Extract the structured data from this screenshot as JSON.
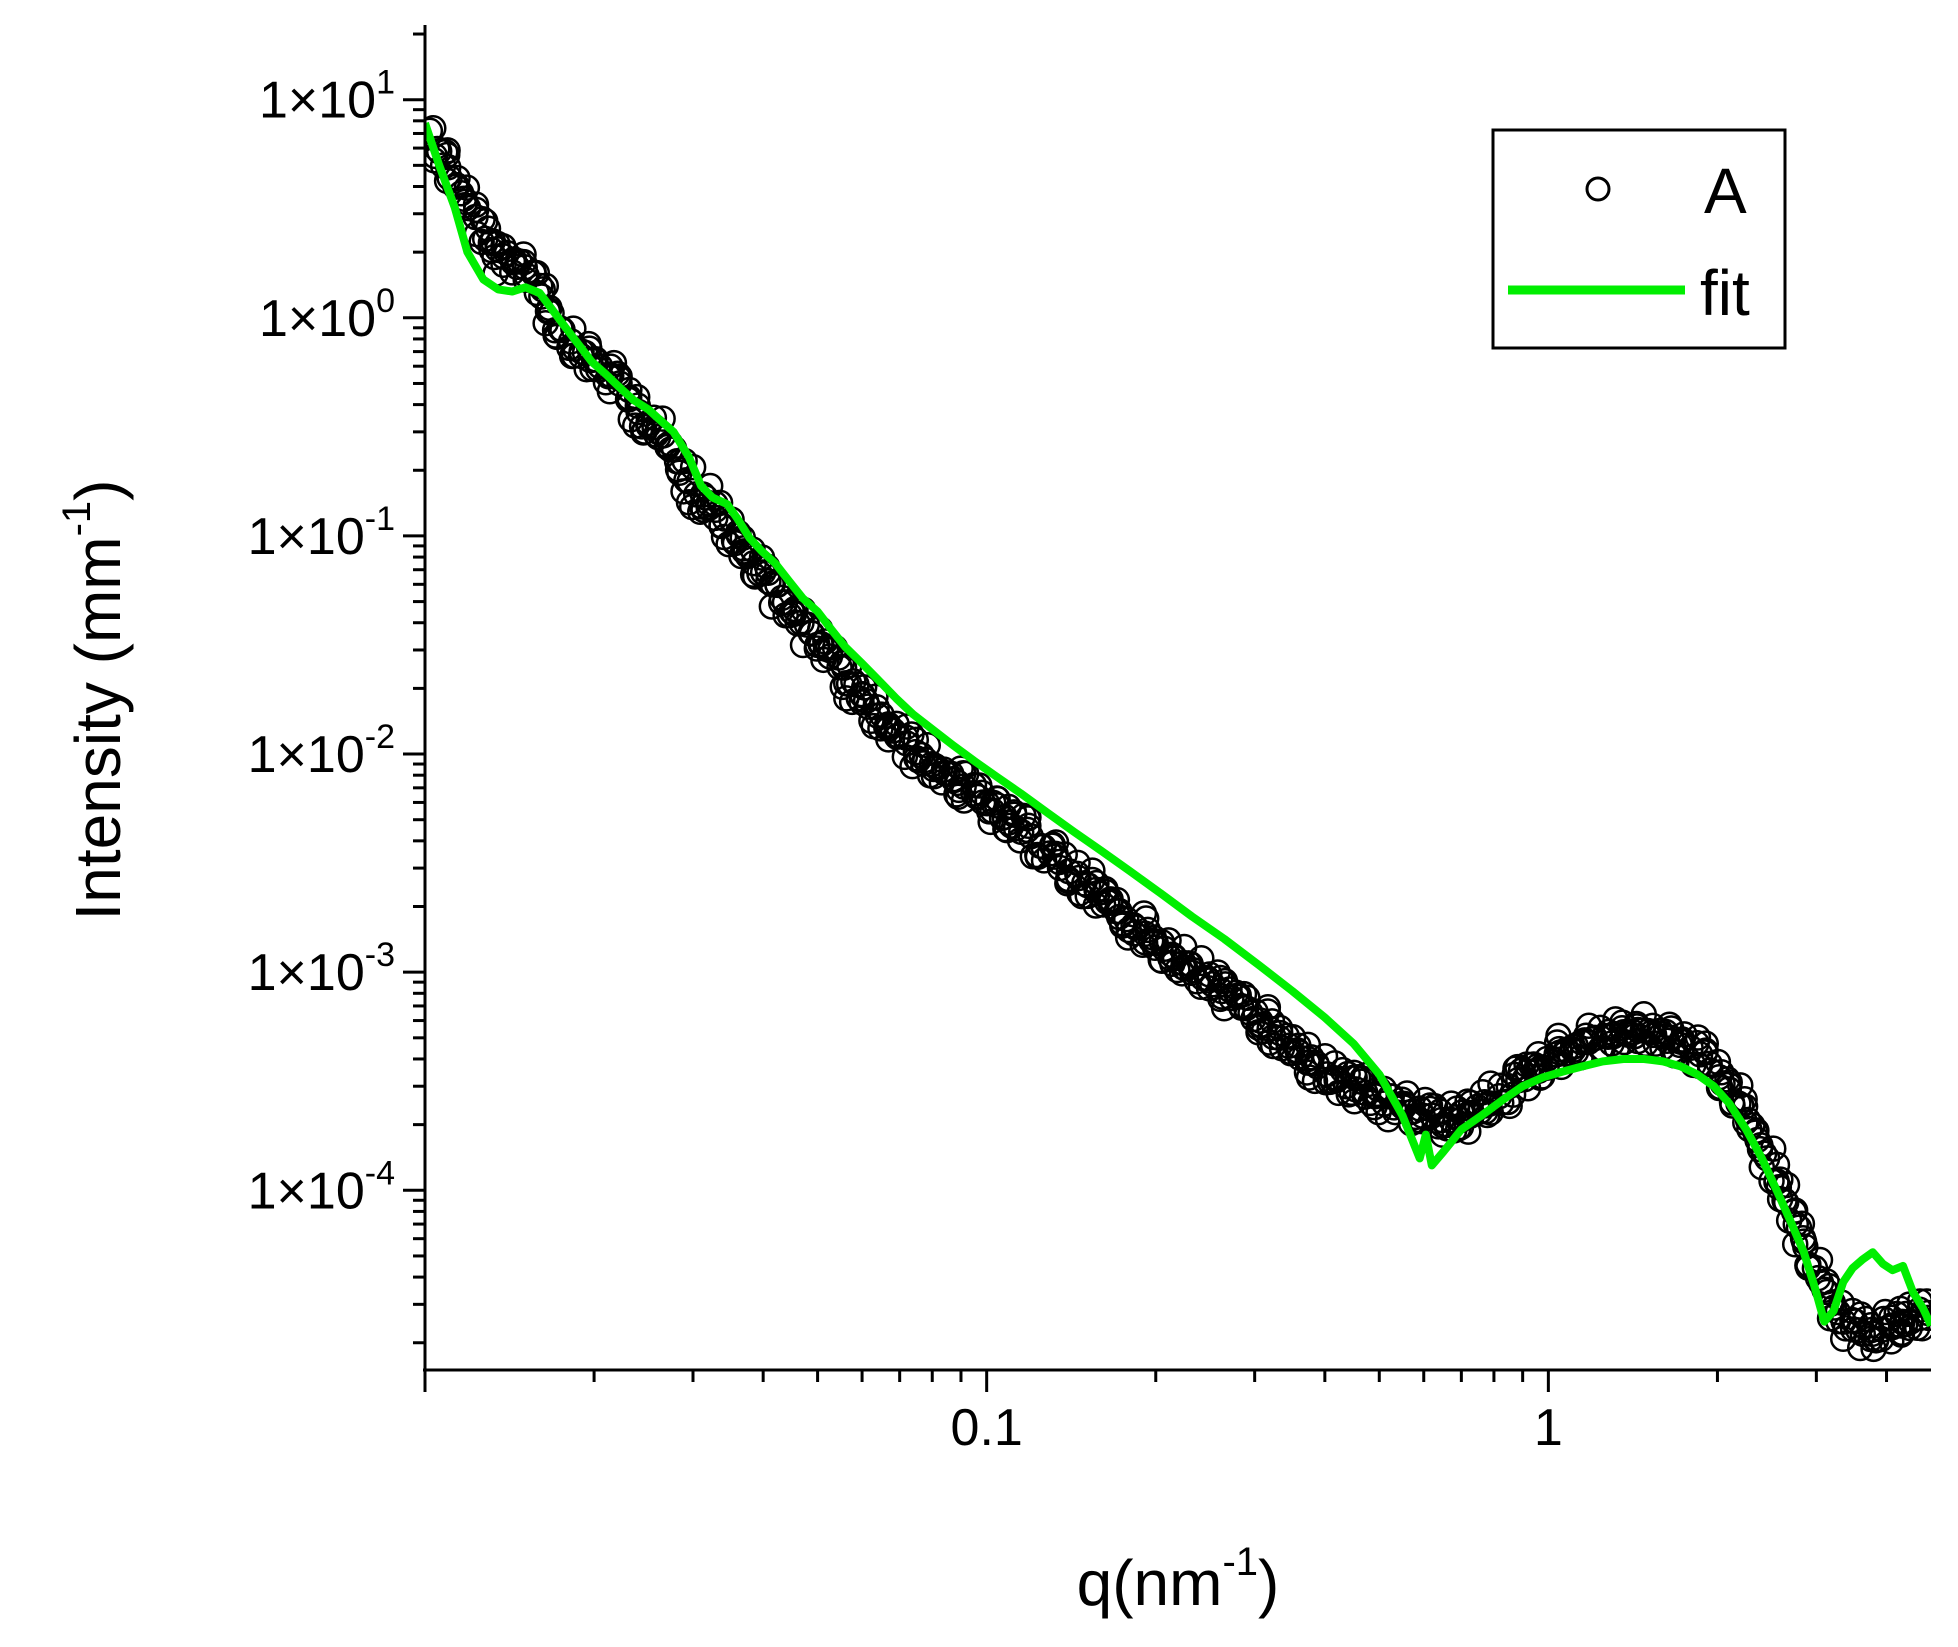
{
  "chart_data": {
    "type": "scatter",
    "xscale": "log",
    "yscale": "log",
    "xlim": [
      0.01,
      4.8
    ],
    "ylim": [
      1.5e-05,
      22
    ],
    "xlabel": {
      "base": "q(nm",
      "sup": "-1",
      "tail": ")"
    },
    "ylabel": {
      "base": "Intensity (mm",
      "sup": "-1",
      "tail": ")"
    },
    "x_ticks": [
      {
        "value": 0.1,
        "label": "0.1"
      },
      {
        "value": 1,
        "label": "1"
      }
    ],
    "y_ticks": [
      {
        "value": 10,
        "mantissa": "1×10",
        "exp": "1"
      },
      {
        "value": 1,
        "mantissa": "1×10",
        "exp": "0"
      },
      {
        "value": 0.1,
        "mantissa": "1×10",
        "exp": "-1"
      },
      {
        "value": 0.01,
        "mantissa": "1×10",
        "exp": "-2"
      },
      {
        "value": 0.001,
        "mantissa": "1×10",
        "exp": "-3"
      },
      {
        "value": 0.0001,
        "mantissa": "1×10",
        "exp": "-4"
      }
    ],
    "legend": {
      "position": "top-right",
      "entries": [
        {
          "label": "A",
          "marker": "open-circle",
          "color": "#000000"
        },
        {
          "label": "fit",
          "marker": "line",
          "color": "#00ee00"
        }
      ]
    },
    "series": [
      {
        "name": "A",
        "style": "open-circle",
        "color": "#000000",
        "x": [
          0.0102,
          0.0106,
          0.011,
          0.0114,
          0.0118,
          0.0123,
          0.0128,
          0.0133,
          0.0138,
          0.0144,
          0.015,
          0.0156,
          0.0162,
          0.0168,
          0.0175,
          0.0182,
          0.019,
          0.0197,
          0.0205,
          0.0213,
          0.0222,
          0.0231,
          0.024,
          0.025,
          0.026,
          0.027,
          0.0281,
          0.0292,
          0.0304,
          0.0316,
          0.0329,
          0.0342,
          0.0355,
          0.037,
          0.0385,
          0.04,
          0.0416,
          0.0432,
          0.045,
          0.0468,
          0.0486,
          0.0506,
          0.0526,
          0.0547,
          0.0569,
          0.0592,
          0.0615,
          0.064,
          0.0665,
          0.0692,
          0.072,
          0.0748,
          0.0778,
          0.081,
          0.0842,
          0.0875,
          0.091,
          0.0947,
          0.0985,
          0.1024,
          0.1065,
          0.1107,
          0.1152,
          0.1198,
          0.1246,
          0.1295,
          0.1347,
          0.1401,
          0.1457,
          0.1515,
          0.1576,
          0.1639,
          0.1704,
          0.1772,
          0.1843,
          0.1917,
          0.1993,
          0.2073,
          0.2156,
          0.2242,
          0.2332,
          0.2425,
          0.2522,
          0.2622,
          0.2727,
          0.2836,
          0.295,
          0.3068,
          0.319,
          0.3318,
          0.345,
          0.3588,
          0.3731,
          0.3881,
          0.4036,
          0.4197,
          0.4365,
          0.454,
          0.4721,
          0.491,
          0.5106,
          0.531,
          0.5523,
          0.5744,
          0.5973,
          0.6212,
          0.6461,
          0.6719,
          0.6988,
          0.7267,
          0.7558,
          0.786,
          0.8175,
          0.8502,
          0.8842,
          0.9195,
          0.9563,
          0.9946,
          1.0343,
          1.0757,
          1.1187,
          1.1635,
          1.21,
          1.2584,
          1.3088,
          1.3611,
          1.4156,
          1.4722,
          1.5311,
          1.5923,
          1.656,
          1.7222,
          1.7911,
          1.8628,
          1.9373,
          2.0148,
          2.0954,
          2.1792,
          2.2663,
          2.357,
          2.4513,
          2.5493,
          2.6513,
          2.7573,
          2.8676,
          2.9823,
          3.1016,
          3.2257,
          3.3547,
          3.4889,
          3.6285,
          3.7736,
          3.9246,
          4.0816,
          4.2448,
          4.4146,
          4.5912,
          4.75
        ],
        "y": [
          7.2,
          5.8,
          4.9,
          4.0,
          3.4,
          2.9,
          2.3,
          1.9,
          1.75,
          1.85,
          1.8,
          1.6,
          1.35,
          1.05,
          0.88,
          0.78,
          0.7,
          0.64,
          0.6,
          0.55,
          0.5,
          0.43,
          0.37,
          0.33,
          0.3,
          0.26,
          0.22,
          0.18,
          0.155,
          0.15,
          0.14,
          0.12,
          0.095,
          0.085,
          0.075,
          0.068,
          0.06,
          0.052,
          0.045,
          0.04,
          0.036,
          0.032,
          0.028,
          0.025,
          0.021,
          0.018,
          0.0165,
          0.015,
          0.0135,
          0.012,
          0.0112,
          0.0102,
          0.0094,
          0.0088,
          0.0082,
          0.0076,
          0.0071,
          0.0066,
          0.006,
          0.0055,
          0.0051,
          0.0047,
          0.0044,
          0.0042,
          0.0038,
          0.0035,
          0.0032,
          0.0029,
          0.0027,
          0.0025,
          0.0023,
          0.0021,
          0.0019,
          0.00175,
          0.0016,
          0.0015,
          0.00138,
          0.00128,
          0.00118,
          0.0011,
          0.00102,
          0.00094,
          0.00088,
          0.00082,
          0.00076,
          0.0007,
          0.00065,
          0.0006,
          0.00055,
          0.0005,
          0.00046,
          0.00043,
          0.0004,
          0.00037,
          0.00034,
          0.00032,
          0.0003,
          0.00029,
          0.00028,
          0.00027,
          0.00025,
          0.00024,
          0.00024,
          0.00023,
          0.00022,
          0.00022,
          0.00021,
          0.00021,
          0.00021,
          0.00022,
          0.00023,
          0.00025,
          0.00027,
          0.0003,
          0.00032,
          0.00035,
          0.00037,
          0.0004,
          0.00042,
          0.00044,
          0.00046,
          0.00048,
          0.0005,
          0.00051,
          0.00052,
          0.00053,
          0.00053,
          0.00054,
          0.00053,
          0.00052,
          0.0005,
          0.00048,
          0.00045,
          0.00042,
          0.00038,
          0.00033,
          0.00029,
          0.00025,
          0.00021,
          0.00017,
          0.00014,
          0.00011,
          8.8e-05,
          7e-05,
          5.5e-05,
          4.4e-05,
          3.5e-05,
          2.9e-05,
          2.5e-05,
          2.3e-05,
          2.2e-05,
          2.2e-05,
          2.3e-05,
          2.4e-05,
          2.4e-05,
          2.5e-05,
          2.6e-05,
          2.6e-05
        ]
      },
      {
        "name": "fit",
        "style": "line",
        "color": "#00ee00",
        "x": [
          0.01,
          0.0106,
          0.0113,
          0.0119,
          0.0127,
          0.0135,
          0.0143,
          0.0151,
          0.016,
          0.0168,
          0.0178,
          0.0188,
          0.0198,
          0.021,
          0.0222,
          0.0235,
          0.025,
          0.0262,
          0.0277,
          0.0295,
          0.031,
          0.0325,
          0.0345,
          0.036,
          0.0378,
          0.0398,
          0.042,
          0.0445,
          0.047,
          0.05,
          0.053,
          0.056,
          0.06,
          0.064,
          0.069,
          0.074,
          0.08,
          0.087,
          0.095,
          0.104,
          0.115,
          0.128,
          0.143,
          0.16,
          0.18,
          0.204,
          0.232,
          0.265,
          0.305,
          0.35,
          0.4,
          0.45,
          0.5,
          0.55,
          0.59,
          0.605,
          0.62,
          0.65,
          0.7,
          0.76,
          0.83,
          0.9,
          0.98,
          1.06,
          1.15,
          1.25,
          1.36,
          1.48,
          1.6,
          1.72,
          1.84,
          1.97,
          2.1,
          2.25,
          2.4,
          2.55,
          2.7,
          2.85,
          2.98,
          3.1,
          3.22,
          3.35,
          3.48,
          3.62,
          3.78,
          3.94,
          4.1,
          4.28,
          4.46,
          4.64,
          4.8
        ],
        "y": [
          7.8,
          5.0,
          3.2,
          2.0,
          1.5,
          1.35,
          1.32,
          1.38,
          1.3,
          1.1,
          0.9,
          0.75,
          0.63,
          0.55,
          0.48,
          0.42,
          0.38,
          0.34,
          0.3,
          0.23,
          0.17,
          0.15,
          0.14,
          0.12,
          0.098,
          0.085,
          0.075,
          0.062,
          0.052,
          0.045,
          0.037,
          0.031,
          0.026,
          0.022,
          0.018,
          0.0152,
          0.013,
          0.011,
          0.0093,
          0.0079,
          0.0066,
          0.0054,
          0.0044,
          0.0036,
          0.0029,
          0.0023,
          0.0018,
          0.00142,
          0.00108,
          0.00082,
          0.00062,
          0.00047,
          0.00034,
          0.00022,
          0.00014,
          0.00018,
          0.00013,
          0.00015,
          0.00019,
          0.00022,
          0.00026,
          0.0003,
          0.00033,
          0.00035,
          0.00037,
          0.00039,
          0.0004,
          0.0004,
          0.00039,
          0.00037,
          0.00034,
          0.0003,
          0.00025,
          0.00019,
          0.00014,
          0.0001,
          7.2e-05,
          5.2e-05,
          3.6e-05,
          2.5e-05,
          2.8e-05,
          3.8e-05,
          4.4e-05,
          4.8e-05,
          5.2e-05,
          4.6e-05,
          4.3e-05,
          4.5e-05,
          3.4e-05,
          2.9e-05,
          2.4e-05
        ]
      }
    ]
  }
}
